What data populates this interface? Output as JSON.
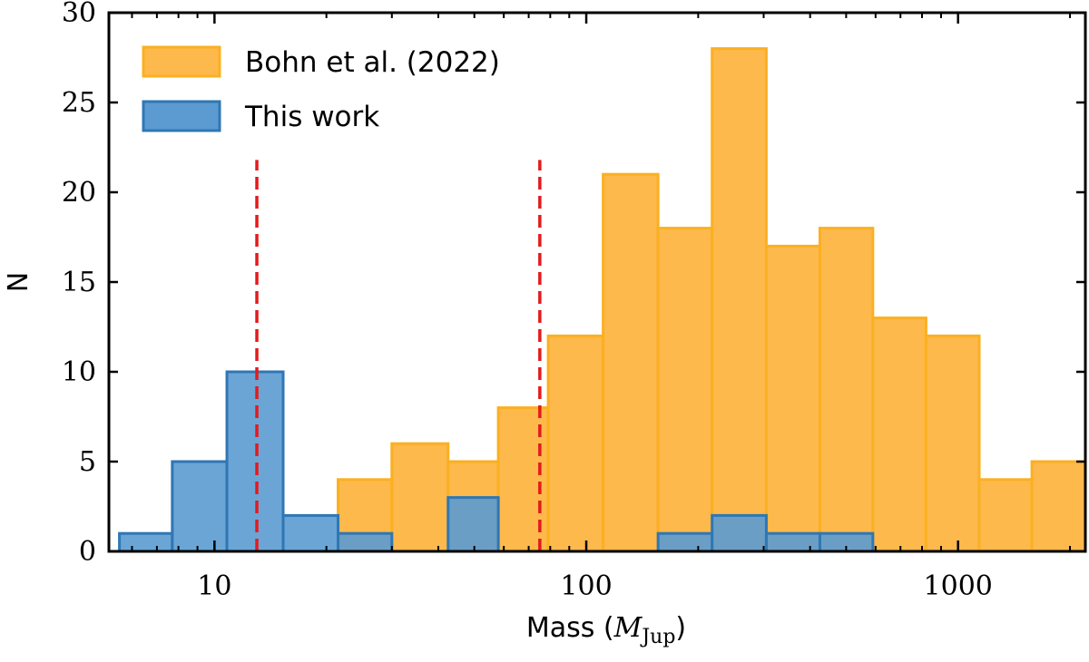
{
  "chart_data": {
    "type": "bar",
    "title": "",
    "xlabel": "Mass (",
    "xlabel_math": "M",
    "xlabel_sub": "Jup",
    "xlabel_close": ")",
    "ylabel": "N",
    "xscale": "log",
    "xlim": [
      5.2,
      2200
    ],
    "ylim": [
      0,
      30
    ],
    "xticks": [
      {
        "value": 10,
        "label": "10"
      },
      {
        "value": 100,
        "label": "100"
      },
      {
        "value": 1000,
        "label": "1000"
      }
    ],
    "yticks": [
      {
        "value": 0,
        "label": "0"
      },
      {
        "value": 5,
        "label": "5"
      },
      {
        "value": 10,
        "label": "10"
      },
      {
        "value": 15,
        "label": "15"
      },
      {
        "value": 20,
        "label": "20"
      },
      {
        "value": 25,
        "label": "25"
      },
      {
        "value": 30,
        "label": "30"
      }
    ],
    "grid": false,
    "legend_position": "top-left",
    "series": [
      {
        "name": "Bohn et al. (2022)",
        "fill": "#fdb94c",
        "edge": "#fbb021",
        "bins": [
          {
            "left": 21.5,
            "right": 30,
            "count": 4
          },
          {
            "left": 30,
            "right": 42.5,
            "count": 6
          },
          {
            "left": 42.5,
            "right": 58,
            "count": 5
          },
          {
            "left": 58,
            "right": 79,
            "count": 8
          },
          {
            "left": 79,
            "right": 111,
            "count": 12
          },
          {
            "left": 111,
            "right": 156,
            "count": 21
          },
          {
            "left": 156,
            "right": 218,
            "count": 18
          },
          {
            "left": 218,
            "right": 305,
            "count": 28
          },
          {
            "left": 305,
            "right": 425,
            "count": 17
          },
          {
            "left": 425,
            "right": 590,
            "count": 18
          },
          {
            "left": 590,
            "right": 820,
            "count": 13
          },
          {
            "left": 820,
            "right": 1140,
            "count": 12
          },
          {
            "left": 1140,
            "right": 1580,
            "count": 4
          },
          {
            "left": 1580,
            "right": 2200,
            "count": 5
          }
        ]
      },
      {
        "name": "This work",
        "fill": "#5b9bd1",
        "edge": "#2f77b4",
        "bins": [
          {
            "left": 5.55,
            "right": 7.7,
            "count": 1
          },
          {
            "left": 7.7,
            "right": 10.8,
            "count": 5
          },
          {
            "left": 10.8,
            "right": 15.3,
            "count": 10
          },
          {
            "left": 15.3,
            "right": 21.5,
            "count": 2
          },
          {
            "left": 21.5,
            "right": 30,
            "count": 1
          },
          {
            "left": 42.5,
            "right": 58,
            "count": 3
          },
          {
            "left": 156,
            "right": 218,
            "count": 1
          },
          {
            "left": 218,
            "right": 305,
            "count": 2
          },
          {
            "left": 305,
            "right": 425,
            "count": 1
          },
          {
            "left": 425,
            "right": 590,
            "count": 1
          }
        ]
      }
    ],
    "reference_lines": [
      {
        "x": 13,
        "y_top": 21.8,
        "color": "#e41a1c",
        "style": "dashed"
      },
      {
        "x": 75,
        "y_top": 21.8,
        "color": "#e41a1c",
        "style": "dashed"
      }
    ]
  }
}
